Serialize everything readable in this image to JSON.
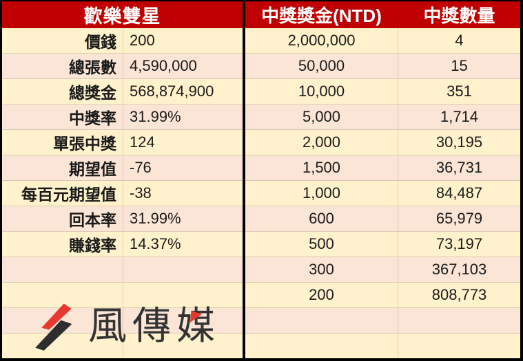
{
  "colors": {
    "header_red": "#C00000",
    "row_cream": "#FFF2CC",
    "row_peach": "#FBE5D6",
    "frame_black": "#000000",
    "logo_red": "#E8392E",
    "logo_dark": "#2E2E2E"
  },
  "chart_data": [
    {
      "type": "table",
      "title": "歡樂雙星",
      "rows": [
        [
          "價錢",
          "200"
        ],
        [
          "總張數",
          "4,590,000"
        ],
        [
          "總獎金",
          "568,874,900"
        ],
        [
          "中獎率",
          "31.99%"
        ],
        [
          "單張中獎",
          "124"
        ],
        [
          "期望值",
          "-76"
        ],
        [
          "每百元期望值",
          "-38"
        ],
        [
          "回本率",
          "31.99%"
        ],
        [
          "賺錢率",
          "14.37%"
        ]
      ]
    },
    {
      "type": "table",
      "columns": [
        "中獎獎金(NTD)",
        "中獎數量"
      ],
      "rows": [
        [
          "2,000,000",
          "4"
        ],
        [
          "50,000",
          "15"
        ],
        [
          "10,000",
          "351"
        ],
        [
          "5,000",
          "1,714"
        ],
        [
          "2,000",
          "30,195"
        ],
        [
          "1,500",
          "36,731"
        ],
        [
          "1,000",
          "84,487"
        ],
        [
          "600",
          "65,979"
        ],
        [
          "500",
          "73,197"
        ],
        [
          "300",
          "367,103"
        ],
        [
          "200",
          "808,773"
        ]
      ]
    }
  ],
  "logo": {
    "text": "風傳媒"
  }
}
